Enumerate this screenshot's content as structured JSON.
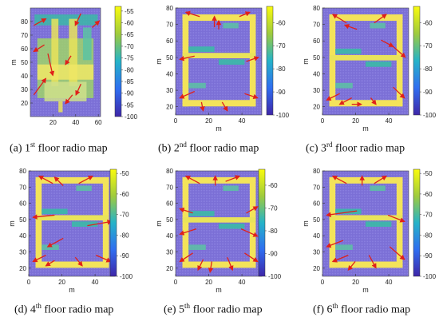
{
  "captions": [
    {
      "prefix": "(a) 1",
      "sup": "st",
      "suffix": " floor radio map"
    },
    {
      "prefix": "(b) 2",
      "sup": "nd",
      "suffix": " floor radio map"
    },
    {
      "prefix": "(c) 3",
      "sup": "rd",
      "suffix": " floor radio map"
    },
    {
      "prefix": "(d) 4",
      "sup": "th",
      "suffix": " floor radio map"
    },
    {
      "prefix": "(e) 5",
      "sup": "th",
      "suffix": " floor radio map"
    },
    {
      "prefix": "(f) 6",
      "sup": "th",
      "suffix": " floor radio map"
    }
  ],
  "colors": {
    "background_cell": "#7b6fd6",
    "corridor_high": "#f3e35a",
    "mid": "#39b7a5",
    "arrow": "#e0201a"
  },
  "chart_data": [
    {
      "type": "heatmap",
      "title": "",
      "xlabel": "",
      "ylabel": "m",
      "x_ticks": [
        20,
        40,
        60
      ],
      "y_ticks": [
        20,
        30,
        40,
        50,
        60,
        70,
        80
      ],
      "xlim": [
        0,
        62
      ],
      "ylim": [
        10,
        90
      ],
      "colorbar_ticks": [
        -55,
        -60,
        -65,
        -70,
        -75,
        -80,
        -85,
        -90,
        -95,
        -100
      ],
      "colorbar_range": [
        -100,
        -53
      ],
      "arrow_count": 9
    },
    {
      "type": "heatmap",
      "title": "",
      "xlabel": "m",
      "ylabel": "m",
      "x_ticks": [
        0,
        20,
        40
      ],
      "y_ticks": [
        20,
        30,
        40,
        50,
        60,
        70,
        80
      ],
      "xlim": [
        0,
        52
      ],
      "ylim": [
        15,
        80
      ],
      "colorbar_ticks": [
        -60,
        -70,
        -80,
        -90,
        -100
      ],
      "colorbar_range": [
        -100,
        -53
      ],
      "arrow_count": 10
    },
    {
      "type": "heatmap",
      "title": "",
      "xlabel": "m",
      "ylabel": "m",
      "x_ticks": [
        0,
        20,
        40
      ],
      "y_ticks": [
        20,
        30,
        40,
        50,
        60,
        70,
        80
      ],
      "xlim": [
        0,
        52
      ],
      "ylim": [
        15,
        80
      ],
      "colorbar_ticks": [
        -60,
        -70,
        -80,
        -90,
        -100
      ],
      "colorbar_range": [
        -100,
        -53
      ],
      "arrow_count": 10
    },
    {
      "type": "heatmap",
      "title": "",
      "xlabel": "m",
      "ylabel": "m",
      "x_ticks": [
        0,
        20,
        40
      ],
      "y_ticks": [
        20,
        30,
        40,
        50,
        60,
        70,
        80
      ],
      "xlim": [
        0,
        52
      ],
      "ylim": [
        15,
        80
      ],
      "colorbar_ticks": [
        -50,
        -60,
        -70,
        -80,
        -90,
        -100
      ],
      "colorbar_range": [
        -100,
        -48
      ],
      "arrow_count": 10
    },
    {
      "type": "heatmap",
      "title": "",
      "xlabel": "m",
      "ylabel": "m",
      "x_ticks": [
        0,
        20,
        40
      ],
      "y_ticks": [
        20,
        30,
        40,
        50,
        60,
        70,
        80
      ],
      "xlim": [
        0,
        52
      ],
      "ylim": [
        15,
        80
      ],
      "colorbar_ticks": [
        -60,
        -70,
        -80,
        -90,
        -100
      ],
      "colorbar_range": [
        -100,
        -53
      ],
      "arrow_count": 12
    },
    {
      "type": "heatmap",
      "title": "",
      "xlabel": "m",
      "ylabel": "m",
      "x_ticks": [
        0,
        20,
        40
      ],
      "y_ticks": [
        20,
        30,
        40,
        50,
        60,
        70,
        80
      ],
      "xlim": [
        0,
        52
      ],
      "ylim": [
        15,
        80
      ],
      "colorbar_ticks": [
        -50,
        -60,
        -70,
        -80,
        -90,
        -100
      ],
      "colorbar_range": [
        -100,
        -48
      ],
      "arrow_count": 10
    }
  ]
}
